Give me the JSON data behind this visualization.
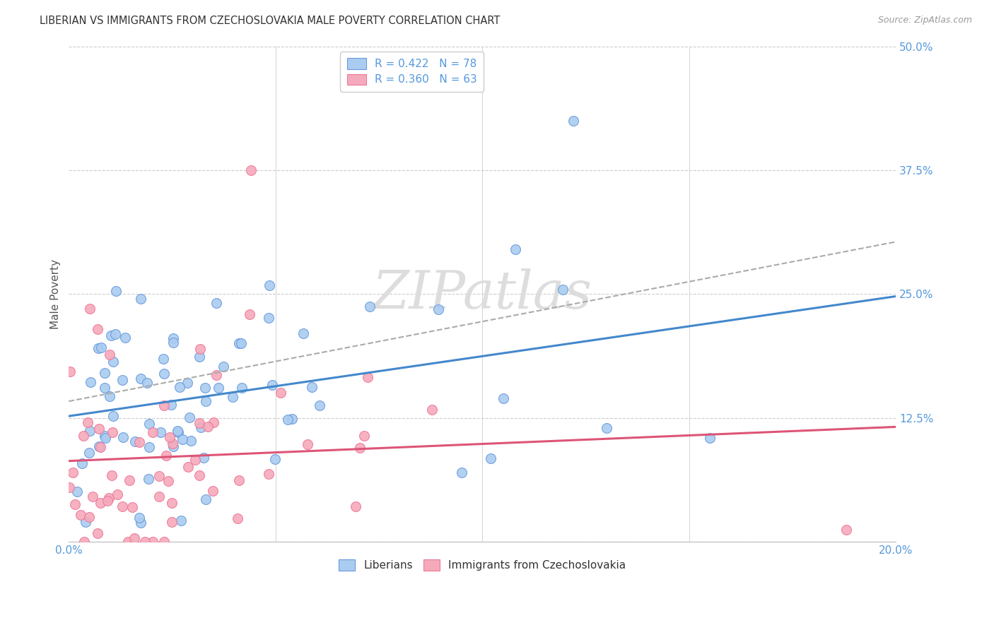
{
  "title": "LIBERIAN VS IMMIGRANTS FROM CZECHOSLOVAKIA MALE POVERTY CORRELATION CHART",
  "source_text": "Source: ZipAtlas.com",
  "ylabel": "Male Poverty",
  "xlim": [
    0.0,
    0.2
  ],
  "ylim": [
    0.0,
    0.5
  ],
  "xticks": [
    0.0,
    0.05,
    0.1,
    0.15,
    0.2
  ],
  "yticks": [
    0.0,
    0.125,
    0.25,
    0.375,
    0.5
  ],
  "legend1_label": "R = 0.422   N = 78",
  "legend2_label": "R = 0.360   N = 63",
  "series1_color": "#aaccf0",
  "series2_color": "#f5aabb",
  "series1_edge": "#6699dd",
  "series2_edge": "#ee7799",
  "trend1_color": "#4488cc",
  "trend2_color": "#dd5577",
  "trend_dashed_color": "#aaaaaa",
  "watermark": "ZIPatlas",
  "background_color": "#ffffff",
  "grid_color": "#cccccc",
  "title_color": "#333333",
  "source_color": "#999999",
  "tick_color": "#5599dd",
  "ylabel_color": "#555555"
}
